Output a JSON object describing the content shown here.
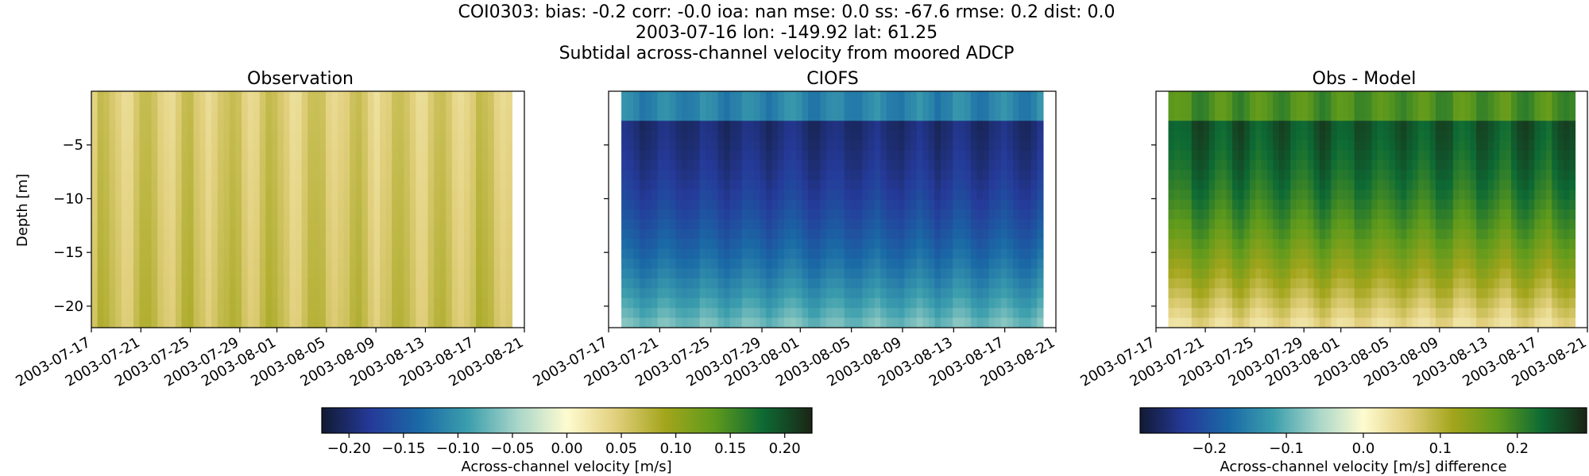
{
  "figure": {
    "title_lines": [
      "COI0303: bias: -0.2  corr: -0.0  ioa: nan  mse: 0.0  ss: -67.6  rmse: 0.2  dist: 0.0",
      "2003-07-16 lon: -149.92 lat: 61.25",
      "Subtidal across-channel velocity from moored ADCP"
    ]
  },
  "chart_data": [
    {
      "type": "heatmap",
      "title": "Observation",
      "ylabel": "Depth [m]",
      "xlabel": "",
      "x_ticks": [
        "2003-07-17",
        "2003-07-21",
        "2003-07-25",
        "2003-07-29",
        "2003-08-01",
        "2003-08-05",
        "2003-08-09",
        "2003-08-13",
        "2003-08-17",
        "2003-08-21"
      ],
      "y_ticks": [
        -5,
        -10,
        -15,
        -20
      ],
      "xlim": [
        "2003-07-17",
        "2003-08-21"
      ],
      "ylim": [
        -22,
        0
      ],
      "data_start": "2003-07-17",
      "data_end": "2003-08-20",
      "colormap": "delta",
      "vmin": -0.22,
      "vmax": 0.22,
      "value_range_shown": [
        0.0,
        0.12
      ]
    },
    {
      "type": "heatmap",
      "title": "CIOFS",
      "xlabel": "",
      "x_ticks": [
        "2003-07-17",
        "2003-07-21",
        "2003-07-25",
        "2003-07-29",
        "2003-08-01",
        "2003-08-05",
        "2003-08-09",
        "2003-08-13",
        "2003-08-17",
        "2003-08-21"
      ],
      "y_ticks": [
        -5,
        -10,
        -15,
        -20
      ],
      "xlim": [
        "2003-07-17",
        "2003-08-21"
      ],
      "ylim": [
        -22,
        0
      ],
      "data_start": "2003-07-18",
      "data_end": "2003-08-20",
      "colormap": "delta",
      "vmin": -0.22,
      "vmax": 0.22,
      "value_range_shown": [
        -0.22,
        -0.05
      ]
    },
    {
      "type": "heatmap",
      "title": "Obs - Model",
      "xlabel": "",
      "x_ticks": [
        "2003-07-17",
        "2003-07-21",
        "2003-07-25",
        "2003-07-29",
        "2003-08-01",
        "2003-08-05",
        "2003-08-09",
        "2003-08-13",
        "2003-08-17",
        "2003-08-21"
      ],
      "y_ticks": [
        -5,
        -10,
        -15,
        -20
      ],
      "xlim": [
        "2003-07-17",
        "2003-08-21"
      ],
      "ylim": [
        -22,
        0
      ],
      "data_start": "2003-07-18",
      "data_end": "2003-08-20",
      "colormap": "delta",
      "vmin": -0.29,
      "vmax": 0.29,
      "value_range_shown": [
        0.03,
        0.29
      ]
    }
  ],
  "colorbars": [
    {
      "label": "Across-channel velocity [m/s]",
      "vmin": -0.225,
      "vmax": 0.225,
      "ticks": [
        "−0.20",
        "−0.15",
        "−0.10",
        "−0.05",
        "0.00",
        "0.05",
        "0.10",
        "0.15",
        "0.20"
      ],
      "tick_values": [
        -0.2,
        -0.15,
        -0.1,
        -0.05,
        0.0,
        0.05,
        0.1,
        0.15,
        0.2
      ]
    },
    {
      "label": "Across-channel velocity [m/s] difference",
      "vmin": -0.29,
      "vmax": 0.29,
      "ticks": [
        "−0.2",
        "−0.1",
        "0.0",
        "0.1",
        "0.2"
      ],
      "tick_values": [
        -0.2,
        -0.1,
        0.0,
        0.1,
        0.2
      ]
    }
  ],
  "colors": {
    "cmap_stops": [
      "#111a33",
      "#253a99",
      "#1a6aa6",
      "#3d9fad",
      "#a9d6c9",
      "#fefbd0",
      "#e1cf7c",
      "#a3a51c",
      "#5f9a1c",
      "#0d6a34",
      "#1b2515"
    ]
  }
}
